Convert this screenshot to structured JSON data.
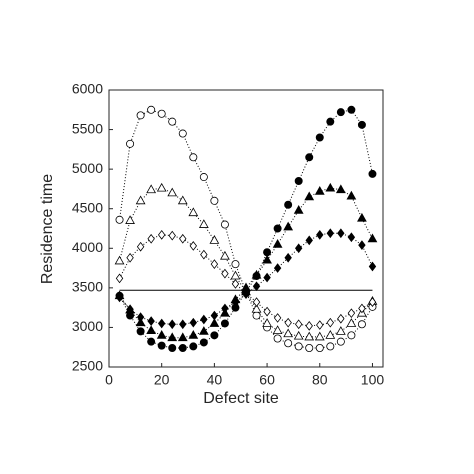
{
  "chart_data": {
    "type": "line",
    "x_label": "Defect site",
    "y_label": "Residence time",
    "xlim": [
      0,
      104
    ],
    "ylim": [
      2500,
      6000
    ],
    "xticks": [
      0,
      20,
      40,
      60,
      80,
      100
    ],
    "yticks": [
      2500,
      3000,
      3500,
      4000,
      4500,
      5000,
      5500,
      6000
    ],
    "grid": false,
    "x": [
      4,
      8,
      12,
      16,
      20,
      24,
      28,
      32,
      36,
      40,
      44,
      48,
      52,
      56,
      60,
      64,
      68,
      72,
      76,
      80,
      84,
      88,
      92,
      96,
      100
    ],
    "series": [
      {
        "color": "#000000",
        "marker": "circle",
        "filled": false,
        "line_style": "dotted",
        "values": [
          4360,
          5320,
          5680,
          5750,
          5700,
          5600,
          5450,
          5150,
          4900,
          4600,
          4300,
          3800,
          3450,
          3150,
          3000,
          2860,
          2800,
          2760,
          2740,
          2740,
          2760,
          2820,
          2900,
          3040,
          3260
        ]
      },
      {
        "color": "#000000",
        "marker": "circle",
        "filled": true,
        "line_style": "dotted",
        "values": [
          3400,
          3150,
          2950,
          2820,
          2770,
          2740,
          2740,
          2760,
          2810,
          2900,
          3050,
          3250,
          3450,
          3650,
          3950,
          4250,
          4550,
          4850,
          5150,
          5400,
          5600,
          5720,
          5750,
          5560,
          4940
        ]
      },
      {
        "color": "#000000",
        "marker": "triangle",
        "filled": false,
        "line_style": "dotted",
        "values": [
          3840,
          4350,
          4600,
          4740,
          4760,
          4700,
          4600,
          4450,
          4300,
          4100,
          3900,
          3650,
          3450,
          3230,
          3050,
          2960,
          2920,
          2890,
          2880,
          2880,
          2900,
          2950,
          3050,
          3180,
          3330
        ]
      },
      {
        "color": "#000000",
        "marker": "triangle",
        "filled": true,
        "line_style": "dotted",
        "values": [
          3400,
          3220,
          3060,
          2960,
          2900,
          2870,
          2870,
          2900,
          2950,
          3050,
          3180,
          3350,
          3500,
          3660,
          3850,
          4050,
          4270,
          4480,
          4650,
          4720,
          4760,
          4740,
          4660,
          4380,
          4120
        ]
      },
      {
        "color": "#000000",
        "marker": "diamond",
        "filled": false,
        "line_style": "dotted",
        "values": [
          3620,
          3880,
          4020,
          4120,
          4170,
          4160,
          4120,
          4030,
          3920,
          3800,
          3680,
          3550,
          3430,
          3320,
          3200,
          3120,
          3060,
          3040,
          3020,
          3030,
          3060,
          3110,
          3180,
          3240,
          3320
        ]
      },
      {
        "color": "#000000",
        "marker": "diamond",
        "filled": true,
        "line_style": "dotted",
        "values": [
          3380,
          3230,
          3130,
          3080,
          3050,
          3040,
          3040,
          3060,
          3100,
          3150,
          3240,
          3320,
          3420,
          3520,
          3630,
          3750,
          3880,
          4000,
          4100,
          4170,
          4190,
          4190,
          4140,
          4040,
          3770
        ]
      },
      {
        "color": "#000000",
        "marker": "none",
        "filled": false,
        "line_style": "solid",
        "x": [
          4,
          100
        ],
        "values": [
          3470,
          3470
        ]
      }
    ]
  }
}
